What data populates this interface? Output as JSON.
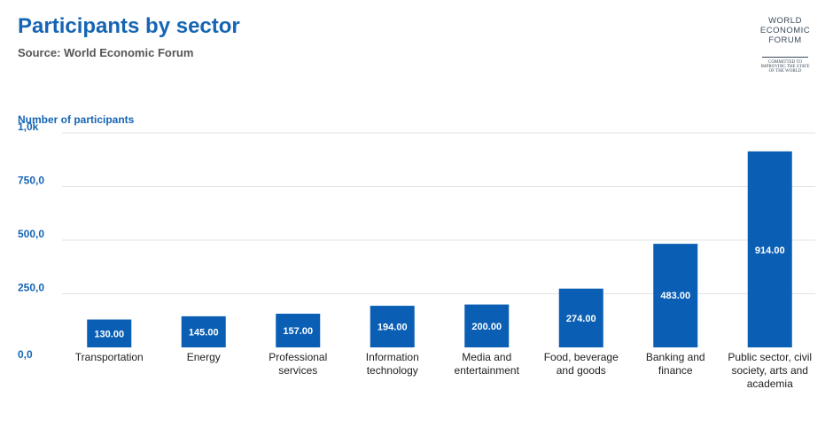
{
  "header": {
    "title": "Participants by sector",
    "subtitle": "Source: World Economic Forum"
  },
  "logo": {
    "lines": [
      "WORLD",
      "ECONOMIC",
      "FORUM"
    ],
    "tagline": [
      "COMMITTED TO",
      "IMPROVING THE STATE",
      "OF THE WORLD"
    ]
  },
  "colors": {
    "title": "#1565b4",
    "bar": "#0a5fb4",
    "axis_label": "#1565b4",
    "grid": "#e3e3e3"
  },
  "chart_data": {
    "type": "bar",
    "ylabel": "Number of participants",
    "ylim": [
      0,
      1000
    ],
    "yticks": [
      0,
      250,
      500,
      750,
      1000
    ],
    "ytick_labels": [
      "0,0",
      "250,0",
      "500,0",
      "750,0",
      "1,0k"
    ],
    "grid": true,
    "categories": [
      "Transportation",
      "Energy",
      "Professional services",
      "Information technology",
      "Media and entertainment",
      "Food, beverage and goods",
      "Banking and finance",
      "Public sector, civil society, arts and academia"
    ],
    "category_lines": [
      [
        "Transportation"
      ],
      [
        "Energy"
      ],
      [
        "Professional",
        "services"
      ],
      [
        "Information",
        "technology"
      ],
      [
        "Media and",
        "entertainment"
      ],
      [
        "Food, beverage",
        "and goods"
      ],
      [
        "Banking and",
        "finance"
      ],
      [
        "Public sector, civil",
        "society, arts and",
        "academia"
      ]
    ],
    "values": [
      130,
      145,
      157,
      194,
      200,
      274,
      483,
      914
    ],
    "data_labels": [
      "130.00",
      "145.00",
      "157.00",
      "194.00",
      "200.00",
      "274.00",
      "483.00",
      "914.00"
    ]
  }
}
